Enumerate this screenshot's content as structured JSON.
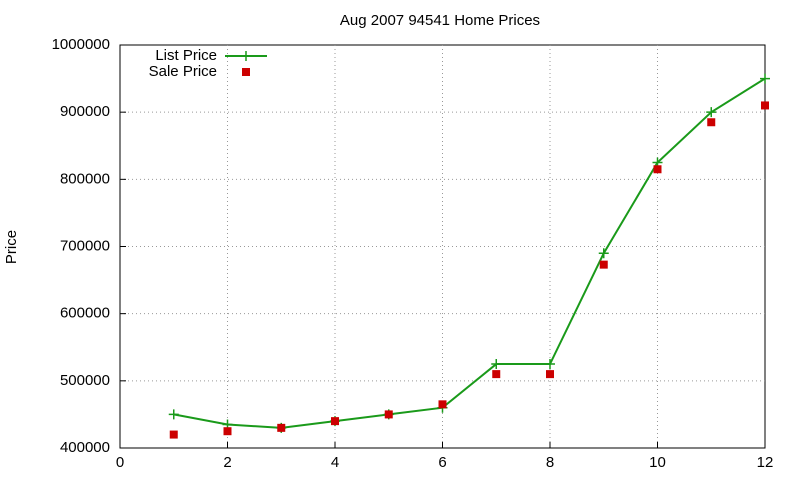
{
  "chart_data": {
    "type": "line",
    "title": "Aug 2007 94541 Home Prices",
    "y_label": "Price",
    "x": [
      1,
      2,
      3,
      4,
      5,
      6,
      7,
      8,
      9,
      10,
      11,
      12
    ],
    "series": [
      {
        "name": "List Price",
        "color": "#1a9a1a",
        "style": "line-points",
        "values": [
          450000,
          435000,
          430000,
          440000,
          450000,
          460000,
          525000,
          525000,
          690000,
          825000,
          900000,
          950000
        ]
      },
      {
        "name": "Sale Price",
        "color": "#cc0000",
        "style": "points",
        "values": [
          420000,
          425000,
          430000,
          440000,
          450000,
          465000,
          510000,
          510000,
          673000,
          815000,
          885000,
          910000
        ]
      }
    ],
    "xlim": [
      0,
      12
    ],
    "xticks": [
      0,
      2,
      4,
      6,
      8,
      10,
      12
    ],
    "ylim": [
      400000,
      1000000
    ],
    "yticks": [
      400000,
      500000,
      600000,
      700000,
      800000,
      900000,
      1000000
    ],
    "grid": true,
    "legend": "top-left"
  }
}
